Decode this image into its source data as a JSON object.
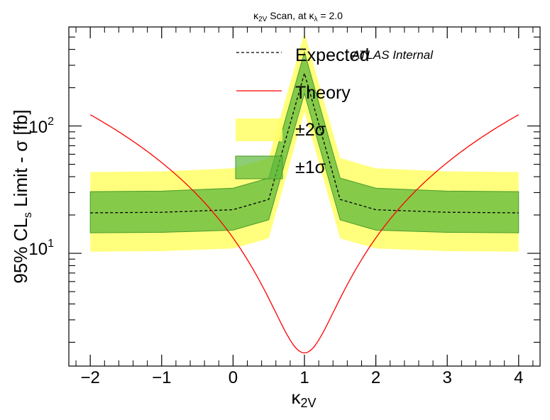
{
  "chart_data": {
    "type": "line",
    "title_parts": {
      "kappa": "κ",
      "sub_2v": "2V",
      "middle": " Scan, at ",
      "kappa2": "κ",
      "sub_lambda": "λ",
      "end": " = 2.0"
    },
    "xlabel": {
      "main": "κ",
      "sub": "2V"
    },
    "ylabel": {
      "left": "95% CL",
      "sub": "s",
      "right": " Limit - σ [fb]"
    },
    "annotation": "ATLAS Internal",
    "x_scale": "linear",
    "y_scale": "log",
    "xlim": [
      -2.3,
      4.3
    ],
    "ylim": [
      1.3,
      600
    ],
    "x_ticks": [
      -2,
      -1,
      0,
      1,
      2,
      3,
      4
    ],
    "x_tick_labels": [
      "−2",
      "−1",
      "0",
      "1",
      "2",
      "3",
      "4"
    ],
    "y_tick_labels": [
      {
        "value": 10,
        "base": "10",
        "exp": "1"
      },
      {
        "value": 100,
        "base": "10",
        "exp": "2"
      }
    ],
    "grid": false,
    "legend_position": "top-center",
    "legend": [
      {
        "key": "expected",
        "label": "Expected"
      },
      {
        "key": "theory",
        "label": "Theory"
      },
      {
        "key": "band2",
        "label": "±2σ"
      },
      {
        "key": "band1",
        "label": "±1σ"
      }
    ],
    "x": [
      -2,
      -1,
      0,
      0.5,
      1,
      1.5,
      2,
      3,
      4
    ],
    "series": [
      {
        "key": "expected",
        "style": "dashed",
        "color": "#000000",
        "values": [
          20.8,
          21.0,
          22.0,
          26.5,
          260,
          26.5,
          22.0,
          21.0,
          20.8
        ]
      },
      {
        "key": "band1_low",
        "values": [
          14.5,
          14.6,
          15.2,
          18.3,
          180,
          18.3,
          15.2,
          14.6,
          14.5
        ]
      },
      {
        "key": "band1_high",
        "values": [
          30.5,
          30.8,
          32.5,
          39.0,
          380,
          39.0,
          32.5,
          30.8,
          30.5
        ]
      },
      {
        "key": "band2_low",
        "values": [
          10.3,
          10.4,
          10.9,
          13.1,
          130,
          13.1,
          10.9,
          10.4,
          10.3
        ]
      },
      {
        "key": "band2_high",
        "values": [
          43.5,
          44.0,
          46.5,
          56.0,
          540,
          56.0,
          46.5,
          44.0,
          43.5
        ]
      }
    ],
    "theory": {
      "key": "theory",
      "color": "#ff0000",
      "form": "sigma = 1.65 + 10.6*(k-1)^2 + 0.95*|k-1|^3",
      "x_range": [
        -2,
        4
      ]
    },
    "colors": {
      "band1": "#5db83a",
      "band2": "#ffff66",
      "expected": "#000000",
      "theory": "#ff0000"
    }
  }
}
